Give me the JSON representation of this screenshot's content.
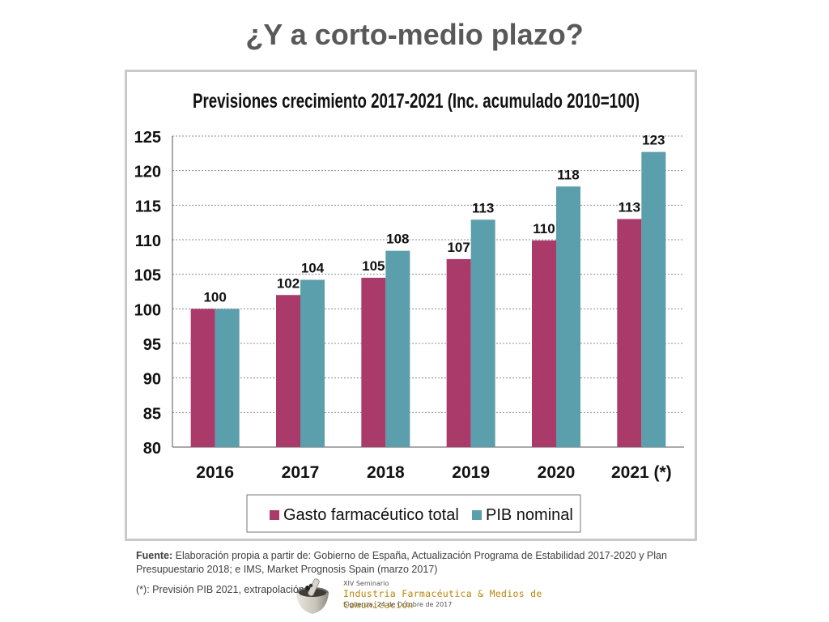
{
  "slide": {
    "title": "¿Y a corto-medio plazo?",
    "source_label": "Fuente:",
    "source_text": " Elaboración propia a partir de: Gobierno de España, Actualización Programa de Estabilidad 2017-2020 y Plan Presupuestario 2018; e IMS, Market Prognosis Spain (marzo 2017)",
    "footnote": "(*): Previsión PIB 2021, extrapolación"
  },
  "logo": {
    "line1": "XIV Seminario",
    "line2": "Industria Farmacéutica & Medios de Comunicación",
    "line3": "Sigüenza, 24 de Octubre de 2017"
  },
  "chart_data": {
    "type": "bar",
    "title": "Previsiones crecimiento 2017-2021 (Inc. acumulado 2010=100)",
    "categories": [
      "2016",
      "2017",
      "2018",
      "2019",
      "2020",
      "2021 (*)"
    ],
    "series": [
      {
        "name": "Gasto farmacéutico total",
        "color": "#a93a6a",
        "values": [
          100,
          102,
          104.5,
          107.2,
          109.9,
          113
        ],
        "labels": [
          "",
          "102",
          "105",
          "107",
          "110",
          "113"
        ]
      },
      {
        "name": "PIB nominal",
        "color": "#5b9eac",
        "values": [
          100,
          104.2,
          108.4,
          112.9,
          117.7,
          122.7
        ],
        "labels": [
          "",
          "104",
          "108",
          "113",
          "118",
          "123"
        ]
      }
    ],
    "shared_label": {
      "category_index": 0,
      "text": "100"
    },
    "ylim": [
      80,
      125
    ],
    "yticks": [
      "80",
      "85",
      "90",
      "95",
      "100",
      "105",
      "110",
      "115",
      "120",
      "125"
    ],
    "grid": true,
    "legend": "bottom"
  }
}
